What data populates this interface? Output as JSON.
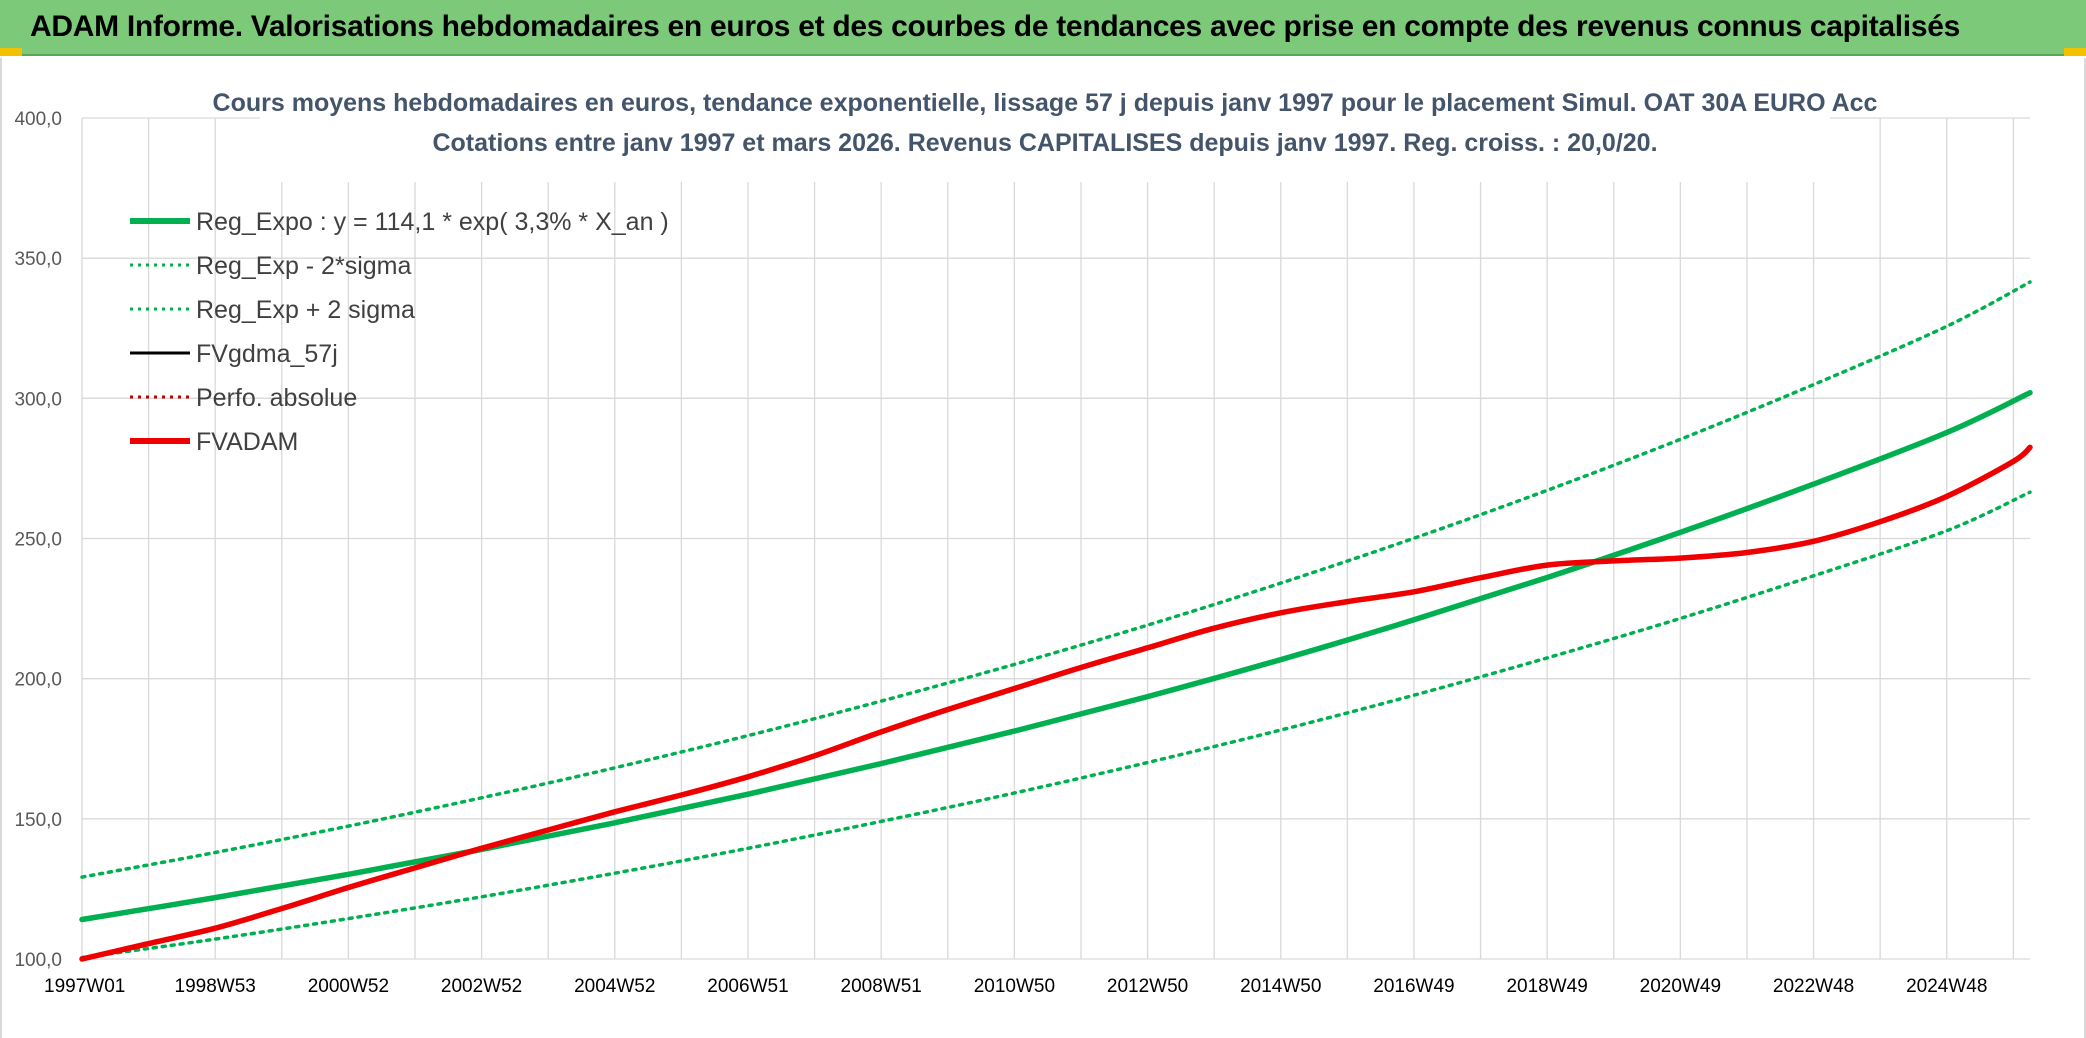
{
  "banner": {
    "title": "ADAM Informe. Valorisations hebdomadaires en euros et des courbes de tendances avec prise en compte des revenus connus capitalisés"
  },
  "colors": {
    "banner_bg": "#7dc97a",
    "reg_green": "#00b050",
    "fvadam_red": "#ee0000",
    "fvgdma_black": "#000000",
    "perfo_red": "#c00000",
    "grid": "#d9d9d9"
  },
  "chart_data": {
    "type": "line",
    "title_line1": "Cours moyens hebdomadaires en euros, tendance exponentielle, lissage 57 j depuis janv 1997 pour le placement Simul. OAT 30A EURO Acc",
    "title_line2": "Cotations entre janv 1997 et mars 2026. Revenus CAPITALISES depuis janv 1997. Reg. croiss. : 20,0/20.",
    "ylim": [
      100,
      400
    ],
    "y_ticks": [
      "100,0",
      "150,0",
      "200,0",
      "250,0",
      "300,0",
      "350,0",
      "400,0"
    ],
    "y_tick_values": [
      100,
      150,
      200,
      250,
      300,
      350,
      400
    ],
    "x_range": [
      1997.0,
      2026.25
    ],
    "x_tick_labels": [
      "1997W01",
      "1998W53",
      "2000W52",
      "2002W52",
      "2004W52",
      "2006W51",
      "2008W51",
      "2010W50",
      "2012W50",
      "2014W50",
      "2016W49",
      "2018W49",
      "2020W49",
      "2022W48",
      "2024W48"
    ],
    "x_tick_years": [
      1997,
      1999,
      2001,
      2003,
      2005,
      2007,
      2009,
      2011,
      2013,
      2015,
      2017,
      2019,
      2021,
      2023,
      2025
    ],
    "legend": [
      {
        "label": "Reg_Expo : y = 114,1 * exp( 3,3% *  X_an )",
        "style": "solid-thick",
        "color": "#00b050"
      },
      {
        "label": "Reg_Exp - 2*sigma",
        "style": "dotted",
        "color": "#00b050"
      },
      {
        "label": "Reg_Exp + 2 sigma",
        "style": "dotted",
        "color": "#00b050"
      },
      {
        "label": "FVgdma_57j",
        "style": "solid",
        "color": "#000000"
      },
      {
        "label": "Perfo. absolue",
        "style": "dotted",
        "color": "#c00000"
      },
      {
        "label": "FVADAM",
        "style": "solid-thick",
        "color": "#ee0000"
      }
    ],
    "series": [
      {
        "name": "Reg_Expo",
        "x": [
          1997,
          1999,
          2001,
          2003,
          2005,
          2007,
          2009,
          2011,
          2013,
          2015,
          2017,
          2019,
          2021,
          2023,
          2025,
          2026.25
        ],
        "values": [
          114.1,
          121.9,
          130.2,
          139.1,
          148.6,
          158.8,
          169.7,
          181.3,
          193.6,
          206.8,
          221.0,
          236.1,
          252.2,
          269.4,
          287.8,
          302.0
        ]
      },
      {
        "name": "Reg_Exp - 2*sigma",
        "x": [
          1997,
          1999,
          2001,
          2003,
          2005,
          2007,
          2009,
          2011,
          2013,
          2015,
          2017,
          2019,
          2021,
          2023,
          2025,
          2026.25
        ],
        "values": [
          100.5,
          107.1,
          114.4,
          122.2,
          130.6,
          139.5,
          149.1,
          159.2,
          170.1,
          181.7,
          194.1,
          207.4,
          221.5,
          236.7,
          252.8,
          266.5
        ]
      },
      {
        "name": "Reg_Exp + 2 sigma",
        "x": [
          1997,
          1999,
          2001,
          2003,
          2005,
          2007,
          2009,
          2011,
          2013,
          2015,
          2017,
          2019,
          2021,
          2023,
          2025,
          2026.25
        ],
        "values": [
          129.2,
          138.0,
          147.4,
          157.5,
          168.2,
          179.7,
          192.0,
          205.1,
          219.1,
          234.1,
          250.1,
          267.2,
          285.4,
          304.9,
          325.7,
          341.5
        ]
      },
      {
        "name": "FVADAM",
        "x": [
          1997,
          1998,
          1999,
          2000,
          2001,
          2002,
          2003,
          2004,
          2005,
          2006,
          2007,
          2008,
          2009,
          2010,
          2011,
          2012,
          2013,
          2014,
          2015,
          2016,
          2017,
          2018,
          2019,
          2020,
          2021,
          2022,
          2023,
          2024,
          2025,
          2026,
          2026.25
        ],
        "values": [
          100.0,
          105.5,
          111.0,
          118.0,
          125.5,
          132.5,
          139.5,
          146.0,
          152.5,
          158.5,
          165.0,
          172.5,
          181.0,
          189.0,
          196.5,
          204.0,
          211.0,
          218.0,
          223.5,
          227.5,
          231.0,
          236.0,
          240.5,
          242.0,
          243.0,
          245.0,
          249.0,
          256.0,
          265.0,
          277.5,
          282.5
        ]
      }
    ]
  }
}
